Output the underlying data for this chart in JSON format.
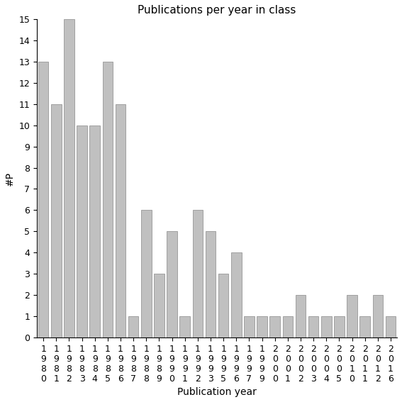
{
  "categories": [
    "1980",
    "1981",
    "1982",
    "1983",
    "1984",
    "1985",
    "1986",
    "1987",
    "1988",
    "1989",
    "1990",
    "1991",
    "1992",
    "1993",
    "1995",
    "1996",
    "1997",
    "1999",
    "2000",
    "2001",
    "2002",
    "2003",
    "2004",
    "2005",
    "2010",
    "2011",
    "2012",
    "2016"
  ],
  "values": [
    13,
    11,
    15,
    10,
    10,
    13,
    11,
    1,
    6,
    3,
    5,
    1,
    6,
    5,
    3,
    4,
    1,
    1,
    1,
    1,
    2,
    1,
    1,
    1,
    2,
    1,
    2,
    1
  ],
  "bar_color": "#c0c0c0",
  "bar_edgecolor": "#888888",
  "title": "Publications per year in class",
  "xlabel": "Publication year",
  "ylabel": "#P",
  "ylim": [
    0,
    15
  ],
  "yticks": [
    0,
    1,
    2,
    3,
    4,
    5,
    6,
    7,
    8,
    9,
    10,
    11,
    12,
    13,
    14,
    15
  ],
  "background_color": "#ffffff",
  "title_fontsize": 11,
  "label_fontsize": 10,
  "tick_fontsize": 9
}
